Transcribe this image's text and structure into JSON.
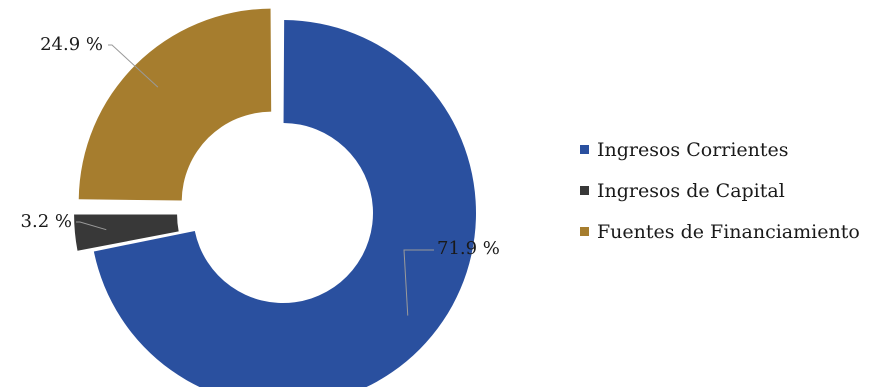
{
  "chart_data": {
    "type": "pie",
    "title": "",
    "categories": [
      "Ingresos Corrientes",
      "Ingresos de Capital",
      "Fuentes de Financiamiento"
    ],
    "values": [
      71.9,
      3.2,
      24.9
    ],
    "labels": [
      "71.9 %",
      "3.2 %",
      "24.9 %"
    ],
    "colors": [
      "#2a509f",
      "#383838",
      "#a67d2e"
    ],
    "donut": true,
    "legend_position": "right"
  }
}
